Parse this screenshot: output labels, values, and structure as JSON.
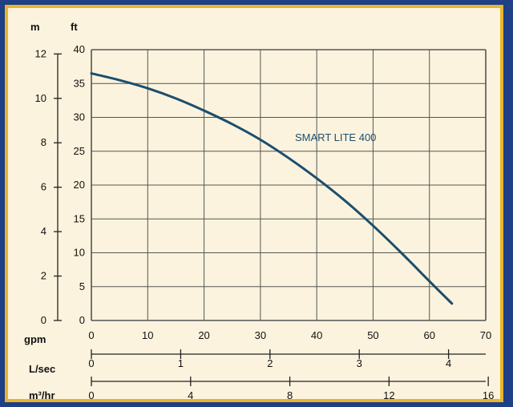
{
  "chart_data": {
    "type": "line",
    "series": [
      {
        "name": "SMART LITE 400",
        "color": "#1c4e6e",
        "x_gpm": [
          0,
          5,
          10,
          15,
          20,
          25,
          30,
          35,
          40,
          45,
          50,
          55,
          60,
          64
        ],
        "y_ft": [
          36.5,
          35.5,
          34.3,
          32.8,
          31.0,
          29.0,
          26.7,
          24.0,
          21.0,
          17.7,
          14.0,
          10.0,
          5.8,
          2.5
        ]
      }
    ],
    "xlim": [
      0,
      70
    ],
    "ylim": [
      0,
      40
    ],
    "grid": true,
    "axes": {
      "ft": {
        "label": "ft",
        "ticks": [
          "0",
          "5",
          "10",
          "15",
          "20",
          "25",
          "30",
          "35",
          "40"
        ]
      },
      "m": {
        "label": "m",
        "ticks": [
          "0",
          "2",
          "4",
          "6",
          "8",
          "10",
          "12"
        ]
      },
      "gpm": {
        "label": "gpm",
        "ticks": [
          "0",
          "10",
          "20",
          "30",
          "40",
          "50",
          "60",
          "70"
        ]
      },
      "lsec": {
        "label": "L/sec",
        "ticks": [
          "0",
          "1",
          "2",
          "3",
          "4"
        ]
      },
      "m3hr": {
        "label": "m³/hr",
        "ticks": [
          "0",
          "4",
          "8",
          "12",
          "16"
        ]
      }
    }
  }
}
